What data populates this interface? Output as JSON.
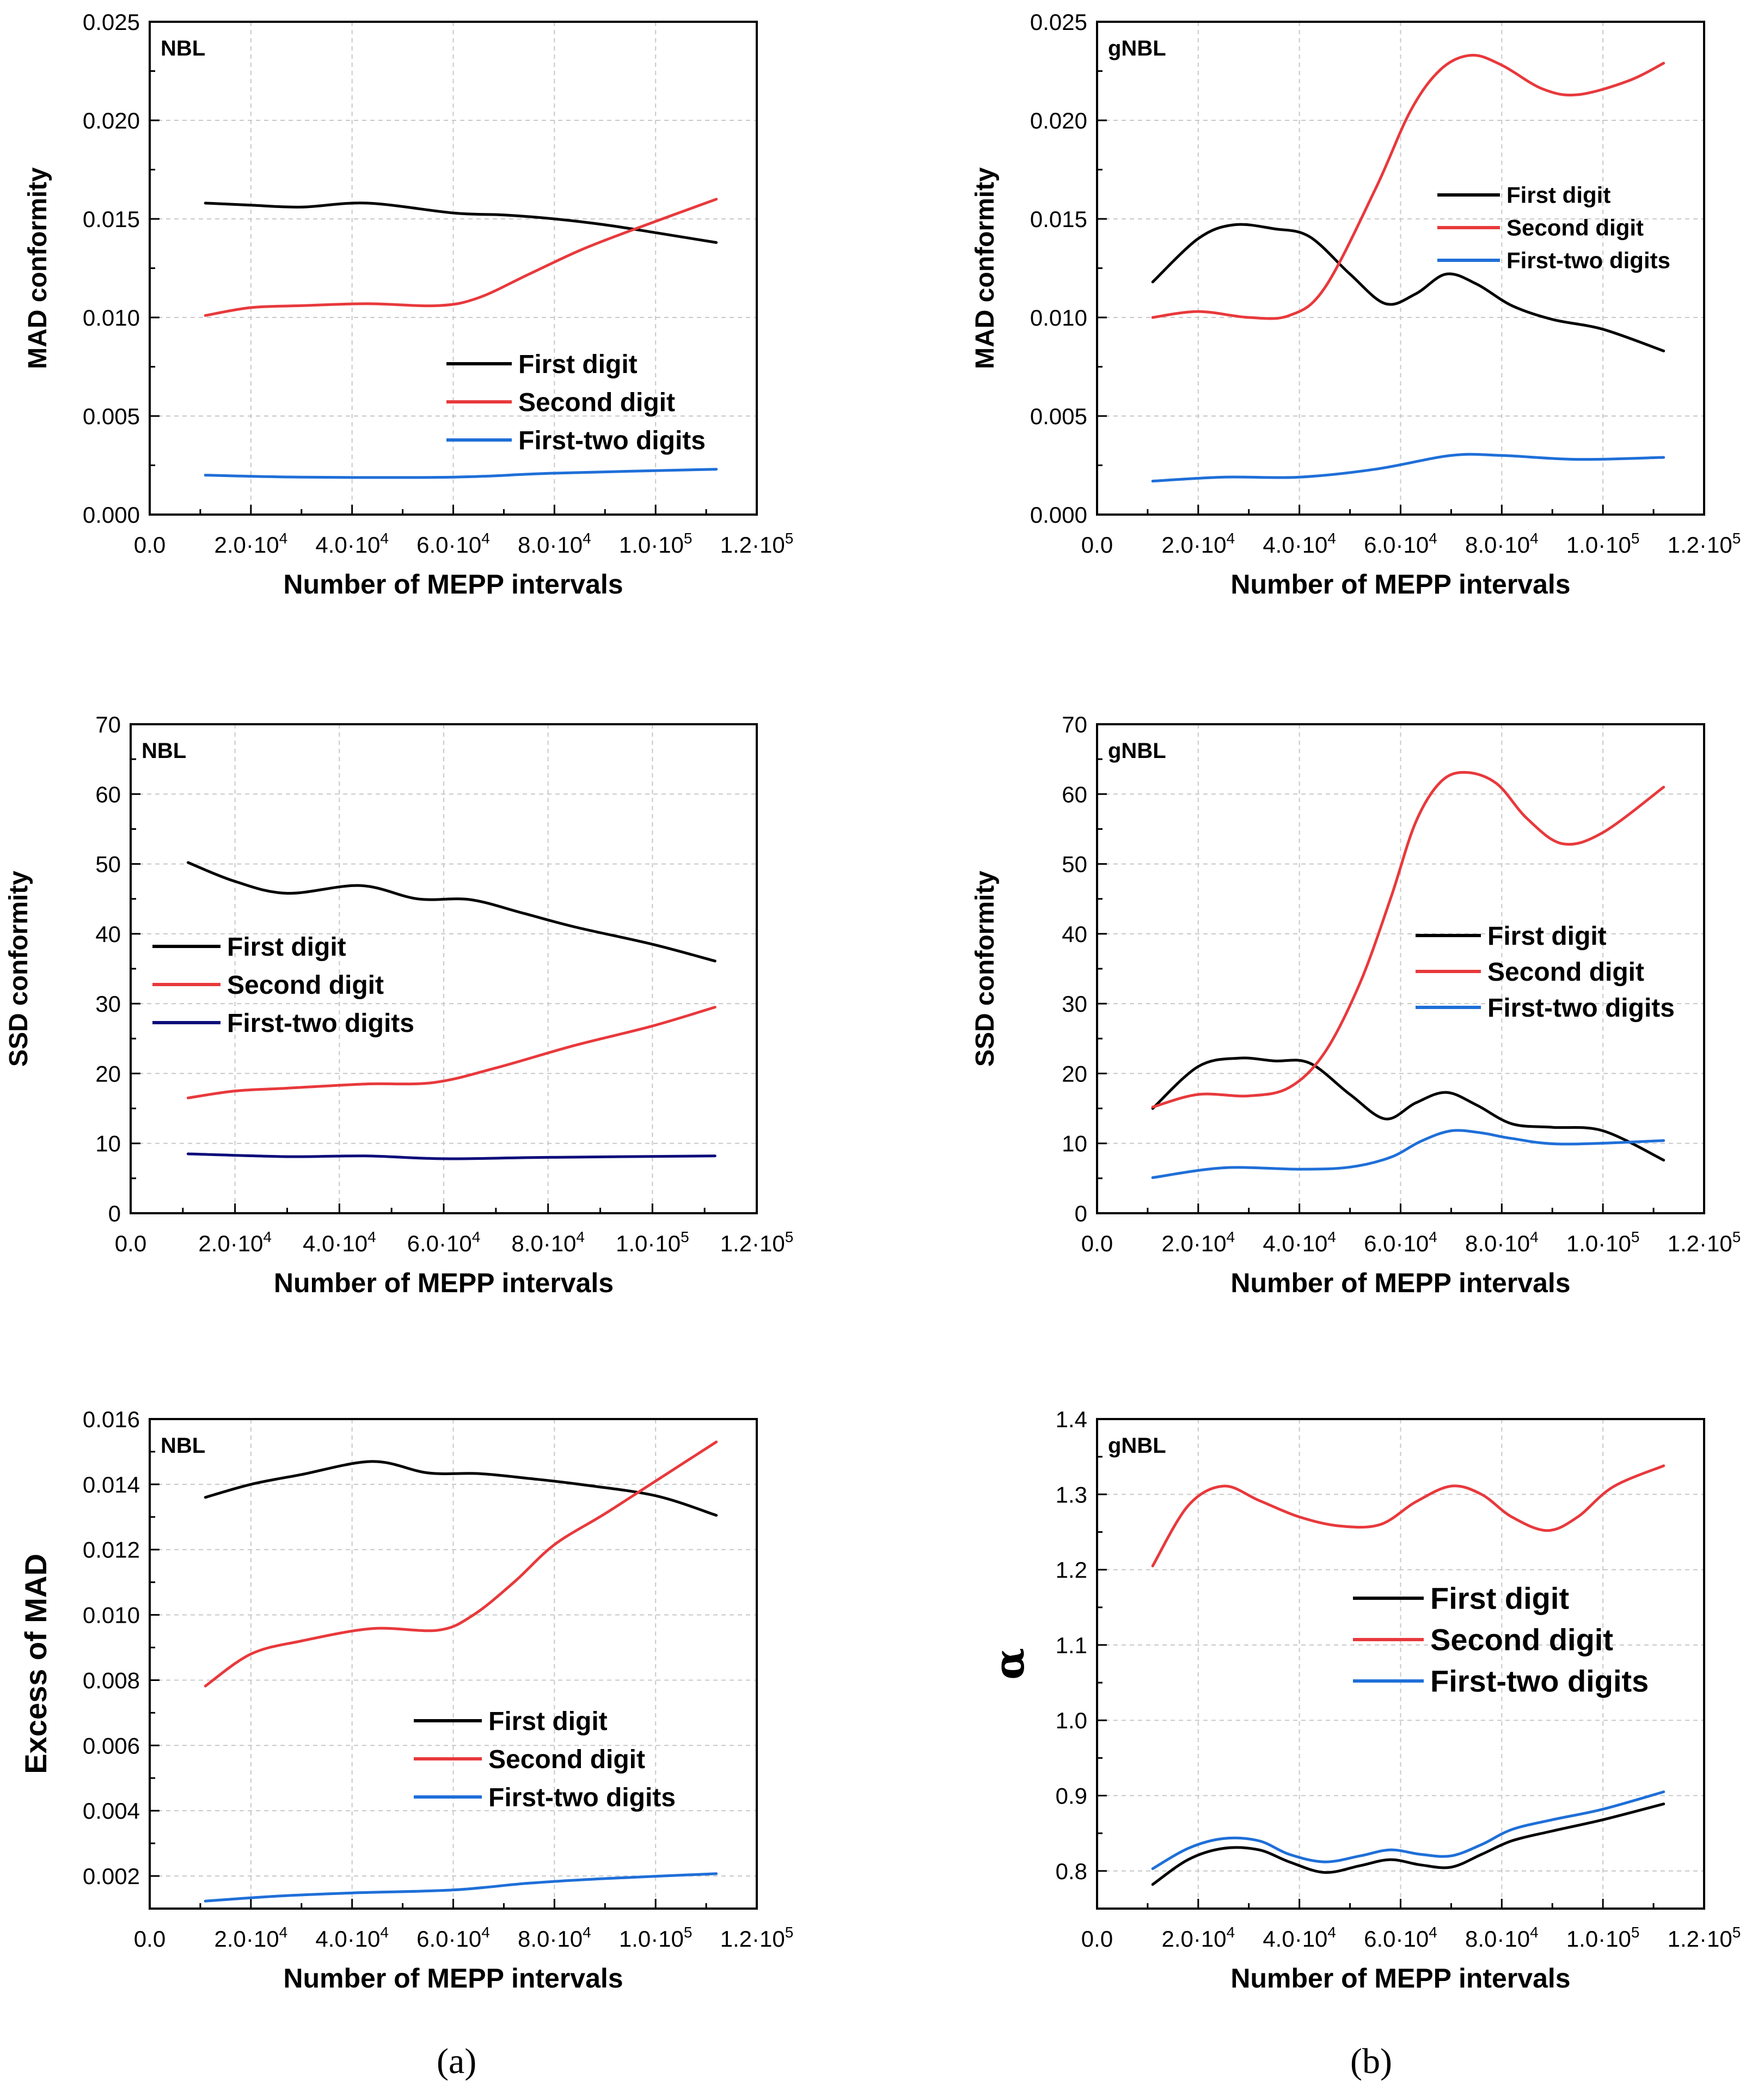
{
  "figure": {
    "panel_labels": {
      "a": "(a)",
      "b": "(b)"
    },
    "x_tick_labels": [
      {
        "v": 0,
        "t": "0.0"
      },
      {
        "v": 20000,
        "m": "2.0",
        "e": "4"
      },
      {
        "v": 40000,
        "m": "4.0",
        "e": "4"
      },
      {
        "v": 60000,
        "m": "6.0",
        "e": "4"
      },
      {
        "v": 80000,
        "m": "8.0",
        "e": "4"
      },
      {
        "v": 100000,
        "m": "1.0",
        "e": "5"
      },
      {
        "v": 120000,
        "m": "1.2",
        "e": "5"
      }
    ],
    "colors": {
      "first": "#000000",
      "second": "#e8393c",
      "firsttwo": "#1f6fd8",
      "firsttwo_navy": "#0b0b7a"
    }
  },
  "chart_data": [
    {
      "id": "a1",
      "type": "line",
      "tag": "NBL",
      "xlabel": "Number of MEPP intervals",
      "ylabel": "MAD conformity",
      "xlim": [
        0,
        120000
      ],
      "ylim": [
        0,
        0.025
      ],
      "yticks": [
        "0.000",
        "0.005",
        "0.010",
        "0.015",
        "0.020",
        "0.025"
      ],
      "legend": {
        "position": "lower-right"
      },
      "series": [
        {
          "name": "First digit",
          "color": "#000000",
          "x": [
            11000,
            20000,
            30000,
            43000,
            60000,
            70000,
            80000,
            90000,
            100000,
            112000
          ],
          "y": [
            0.0158,
            0.0157,
            0.0156,
            0.0158,
            0.0153,
            0.0152,
            0.015,
            0.0147,
            0.0143,
            0.0138
          ]
        },
        {
          "name": "Second digit",
          "color": "#e8393c",
          "x": [
            11000,
            20000,
            30000,
            43000,
            57000,
            65000,
            75000,
            85000,
            95000,
            112000
          ],
          "y": [
            0.0101,
            0.0105,
            0.0106,
            0.0107,
            0.0106,
            0.011,
            0.0122,
            0.0134,
            0.0144,
            0.016
          ]
        },
        {
          "name": "First-two digits",
          "color": "#1f6fd8",
          "x": [
            11000,
            30000,
            60000,
            80000,
            112000
          ],
          "y": [
            0.002,
            0.0019,
            0.0019,
            0.0021,
            0.0023
          ]
        }
      ]
    },
    {
      "id": "b1",
      "type": "line",
      "tag": "gNBL",
      "xlabel": "Number of MEPP intervals",
      "ylabel": "MAD conformity",
      "xlim": [
        0,
        120000
      ],
      "ylim": [
        0,
        0.025
      ],
      "yticks": [
        "0.000",
        "0.005",
        "0.010",
        "0.015",
        "0.020",
        "0.025"
      ],
      "legend": {
        "position": "top-right"
      },
      "series": [
        {
          "name": "First digit",
          "color": "#000000",
          "x": [
            11000,
            20000,
            27000,
            35000,
            42000,
            50000,
            57000,
            63000,
            69000,
            75000,
            82000,
            90000,
            100000,
            112000
          ],
          "y": [
            0.0118,
            0.014,
            0.0147,
            0.0145,
            0.0141,
            0.0122,
            0.0107,
            0.0112,
            0.0122,
            0.0117,
            0.0106,
            0.0099,
            0.0094,
            0.0083
          ]
        },
        {
          "name": "Second digit",
          "color": "#e8393c",
          "x": [
            11000,
            20000,
            30000,
            38000,
            45000,
            55000,
            62000,
            68000,
            74000,
            80000,
            88000,
            95000,
            105000,
            112000
          ],
          "y": [
            0.01,
            0.0103,
            0.01,
            0.0101,
            0.0115,
            0.0165,
            0.0205,
            0.0226,
            0.0233,
            0.0228,
            0.0216,
            0.0213,
            0.022,
            0.0229
          ]
        },
        {
          "name": "First-two digits",
          "color": "#1f6fd8",
          "x": [
            11000,
            25000,
            40000,
            55000,
            70000,
            80000,
            95000,
            112000
          ],
          "y": [
            0.0017,
            0.0019,
            0.0019,
            0.0023,
            0.003,
            0.003,
            0.0028,
            0.0029
          ]
        }
      ]
    },
    {
      "id": "a2",
      "type": "line",
      "tag": "NBL",
      "xlabel": "Number of MEPP intervals",
      "ylabel": "SSD conformity",
      "xlim": [
        0,
        120000
      ],
      "ylim": [
        0,
        70
      ],
      "yticks": [
        "0",
        "10",
        "20",
        "30",
        "40",
        "50",
        "60",
        "70"
      ],
      "legend": {
        "position": "middle-left"
      },
      "series": [
        {
          "name": "First digit",
          "color": "#000000",
          "x": [
            11000,
            20000,
            30000,
            44000,
            55000,
            65000,
            75000,
            85000,
            100000,
            112000
          ],
          "y": [
            50.2,
            47.5,
            45.8,
            46.9,
            45.0,
            44.9,
            43.0,
            41.0,
            38.5,
            36.1
          ]
        },
        {
          "name": "Second digit",
          "color": "#e8393c",
          "x": [
            11000,
            20000,
            30000,
            45000,
            58000,
            70000,
            85000,
            100000,
            112000
          ],
          "y": [
            16.5,
            17.5,
            17.9,
            18.5,
            18.7,
            20.8,
            24.0,
            26.8,
            29.5
          ]
        },
        {
          "name": "First-two digits",
          "color": "#0b0b7a",
          "x": [
            11000,
            30000,
            45000,
            60000,
            80000,
            112000
          ],
          "y": [
            8.5,
            8.1,
            8.2,
            7.8,
            8.0,
            8.2
          ]
        }
      ]
    },
    {
      "id": "b2",
      "type": "line",
      "tag": "gNBL",
      "xlabel": "Number of MEPP intervals",
      "ylabel": "SSD conformity",
      "xlim": [
        0,
        120000
      ],
      "ylim": [
        0,
        70
      ],
      "yticks": [
        "0",
        "10",
        "20",
        "30",
        "40",
        "50",
        "60",
        "70"
      ],
      "legend": {
        "position": "middle-right"
      },
      "series": [
        {
          "name": "First digit",
          "color": "#000000",
          "x": [
            11000,
            20000,
            28000,
            35000,
            42000,
            50000,
            57000,
            63000,
            69000,
            75000,
            82000,
            90000,
            100000,
            112000
          ],
          "y": [
            15.0,
            21.0,
            22.2,
            21.8,
            21.5,
            17.0,
            13.5,
            15.8,
            17.3,
            15.5,
            12.8,
            12.3,
            11.8,
            7.6
          ]
        },
        {
          "name": "Second digit",
          "color": "#e8393c",
          "x": [
            11000,
            20000,
            30000,
            38000,
            45000,
            52000,
            58000,
            63000,
            68000,
            73000,
            79000,
            85000,
            92000,
            100000,
            112000
          ],
          "y": [
            15.2,
            17.0,
            16.8,
            18.0,
            23.0,
            33.0,
            45.0,
            56.0,
            61.8,
            63.1,
            61.5,
            56.5,
            52.9,
            54.5,
            61.0
          ]
        },
        {
          "name": "First-two digits",
          "color": "#1f6fd8",
          "x": [
            11000,
            25000,
            40000,
            50000,
            58000,
            64000,
            70000,
            76000,
            82000,
            92000,
            112000
          ],
          "y": [
            5.1,
            6.5,
            6.3,
            6.6,
            8.0,
            10.3,
            11.8,
            11.5,
            10.7,
            9.9,
            10.4
          ]
        }
      ]
    },
    {
      "id": "a3",
      "type": "line",
      "tag": "NBL",
      "xlabel": "Number of MEPP intervals",
      "ylabel": "Excess of MAD",
      "xlim": [
        0,
        120000
      ],
      "ylim": [
        0.001,
        0.016
      ],
      "yticks": [
        "0.002",
        "0.004",
        "0.006",
        "0.008",
        "0.010",
        "0.012",
        "0.014",
        "0.016"
      ],
      "legend": {
        "position": "lower-right"
      },
      "series": [
        {
          "name": "First digit",
          "color": "#000000",
          "x": [
            11000,
            20000,
            30000,
            44000,
            55000,
            65000,
            75000,
            85000,
            100000,
            112000
          ],
          "y": [
            0.0136,
            0.014,
            0.0143,
            0.0147,
            0.01435,
            0.01433,
            0.01418,
            0.014,
            0.01365,
            0.01305
          ]
        },
        {
          "name": "Second digit",
          "color": "#e8393c",
          "x": [
            11000,
            20000,
            30000,
            44000,
            57000,
            64000,
            72000,
            80000,
            90000,
            100000,
            112000
          ],
          "y": [
            0.00782,
            0.0088,
            0.0092,
            0.00958,
            0.00953,
            0.01,
            0.011,
            0.01215,
            0.0131,
            0.0141,
            0.0153
          ]
        },
        {
          "name": "First-two digits",
          "color": "#1f6fd8",
          "x": [
            11000,
            25000,
            40000,
            60000,
            75000,
            90000,
            112000
          ],
          "y": [
            0.00123,
            0.00138,
            0.00148,
            0.00157,
            0.00178,
            0.00192,
            0.00207
          ]
        }
      ]
    },
    {
      "id": "b3",
      "type": "line",
      "tag": "gNBL",
      "xlabel": "Number of MEPP intervals",
      "ylabel": "α",
      "xlim": [
        0,
        120000
      ],
      "ylim": [
        0.75,
        1.4
      ],
      "yticks": [
        "0.8",
        "0.9",
        "1.0",
        "1.1",
        "1.2",
        "1.3",
        "1.4"
      ],
      "legend": {
        "position": "middle-right"
      },
      "series": [
        {
          "name": "First digit",
          "color": "#000000",
          "x": [
            11000,
            18000,
            25000,
            32000,
            38000,
            45000,
            52000,
            58000,
            64000,
            70000,
            76000,
            82000,
            90000,
            100000,
            112000
          ],
          "y": [
            0.782,
            0.815,
            0.83,
            0.828,
            0.812,
            0.798,
            0.807,
            0.815,
            0.808,
            0.805,
            0.822,
            0.84,
            0.853,
            0.868,
            0.889
          ]
        },
        {
          "name": "Second digit",
          "color": "#e8393c",
          "x": [
            11000,
            18000,
            25000,
            32000,
            40000,
            48000,
            56000,
            63000,
            70000,
            76000,
            82000,
            89000,
            95000,
            102000,
            112000
          ],
          "y": [
            1.205,
            1.285,
            1.311,
            1.292,
            1.27,
            1.258,
            1.26,
            1.29,
            1.311,
            1.3,
            1.27,
            1.252,
            1.27,
            1.31,
            1.338
          ]
        },
        {
          "name": "First-two digits",
          "color": "#1f6fd8",
          "x": [
            11000,
            18000,
            25000,
            32000,
            38000,
            45000,
            52000,
            58000,
            64000,
            70000,
            76000,
            82000,
            90000,
            100000,
            112000
          ],
          "y": [
            0.803,
            0.83,
            0.843,
            0.84,
            0.822,
            0.812,
            0.82,
            0.828,
            0.822,
            0.82,
            0.835,
            0.855,
            0.868,
            0.882,
            0.905
          ]
        }
      ]
    }
  ]
}
